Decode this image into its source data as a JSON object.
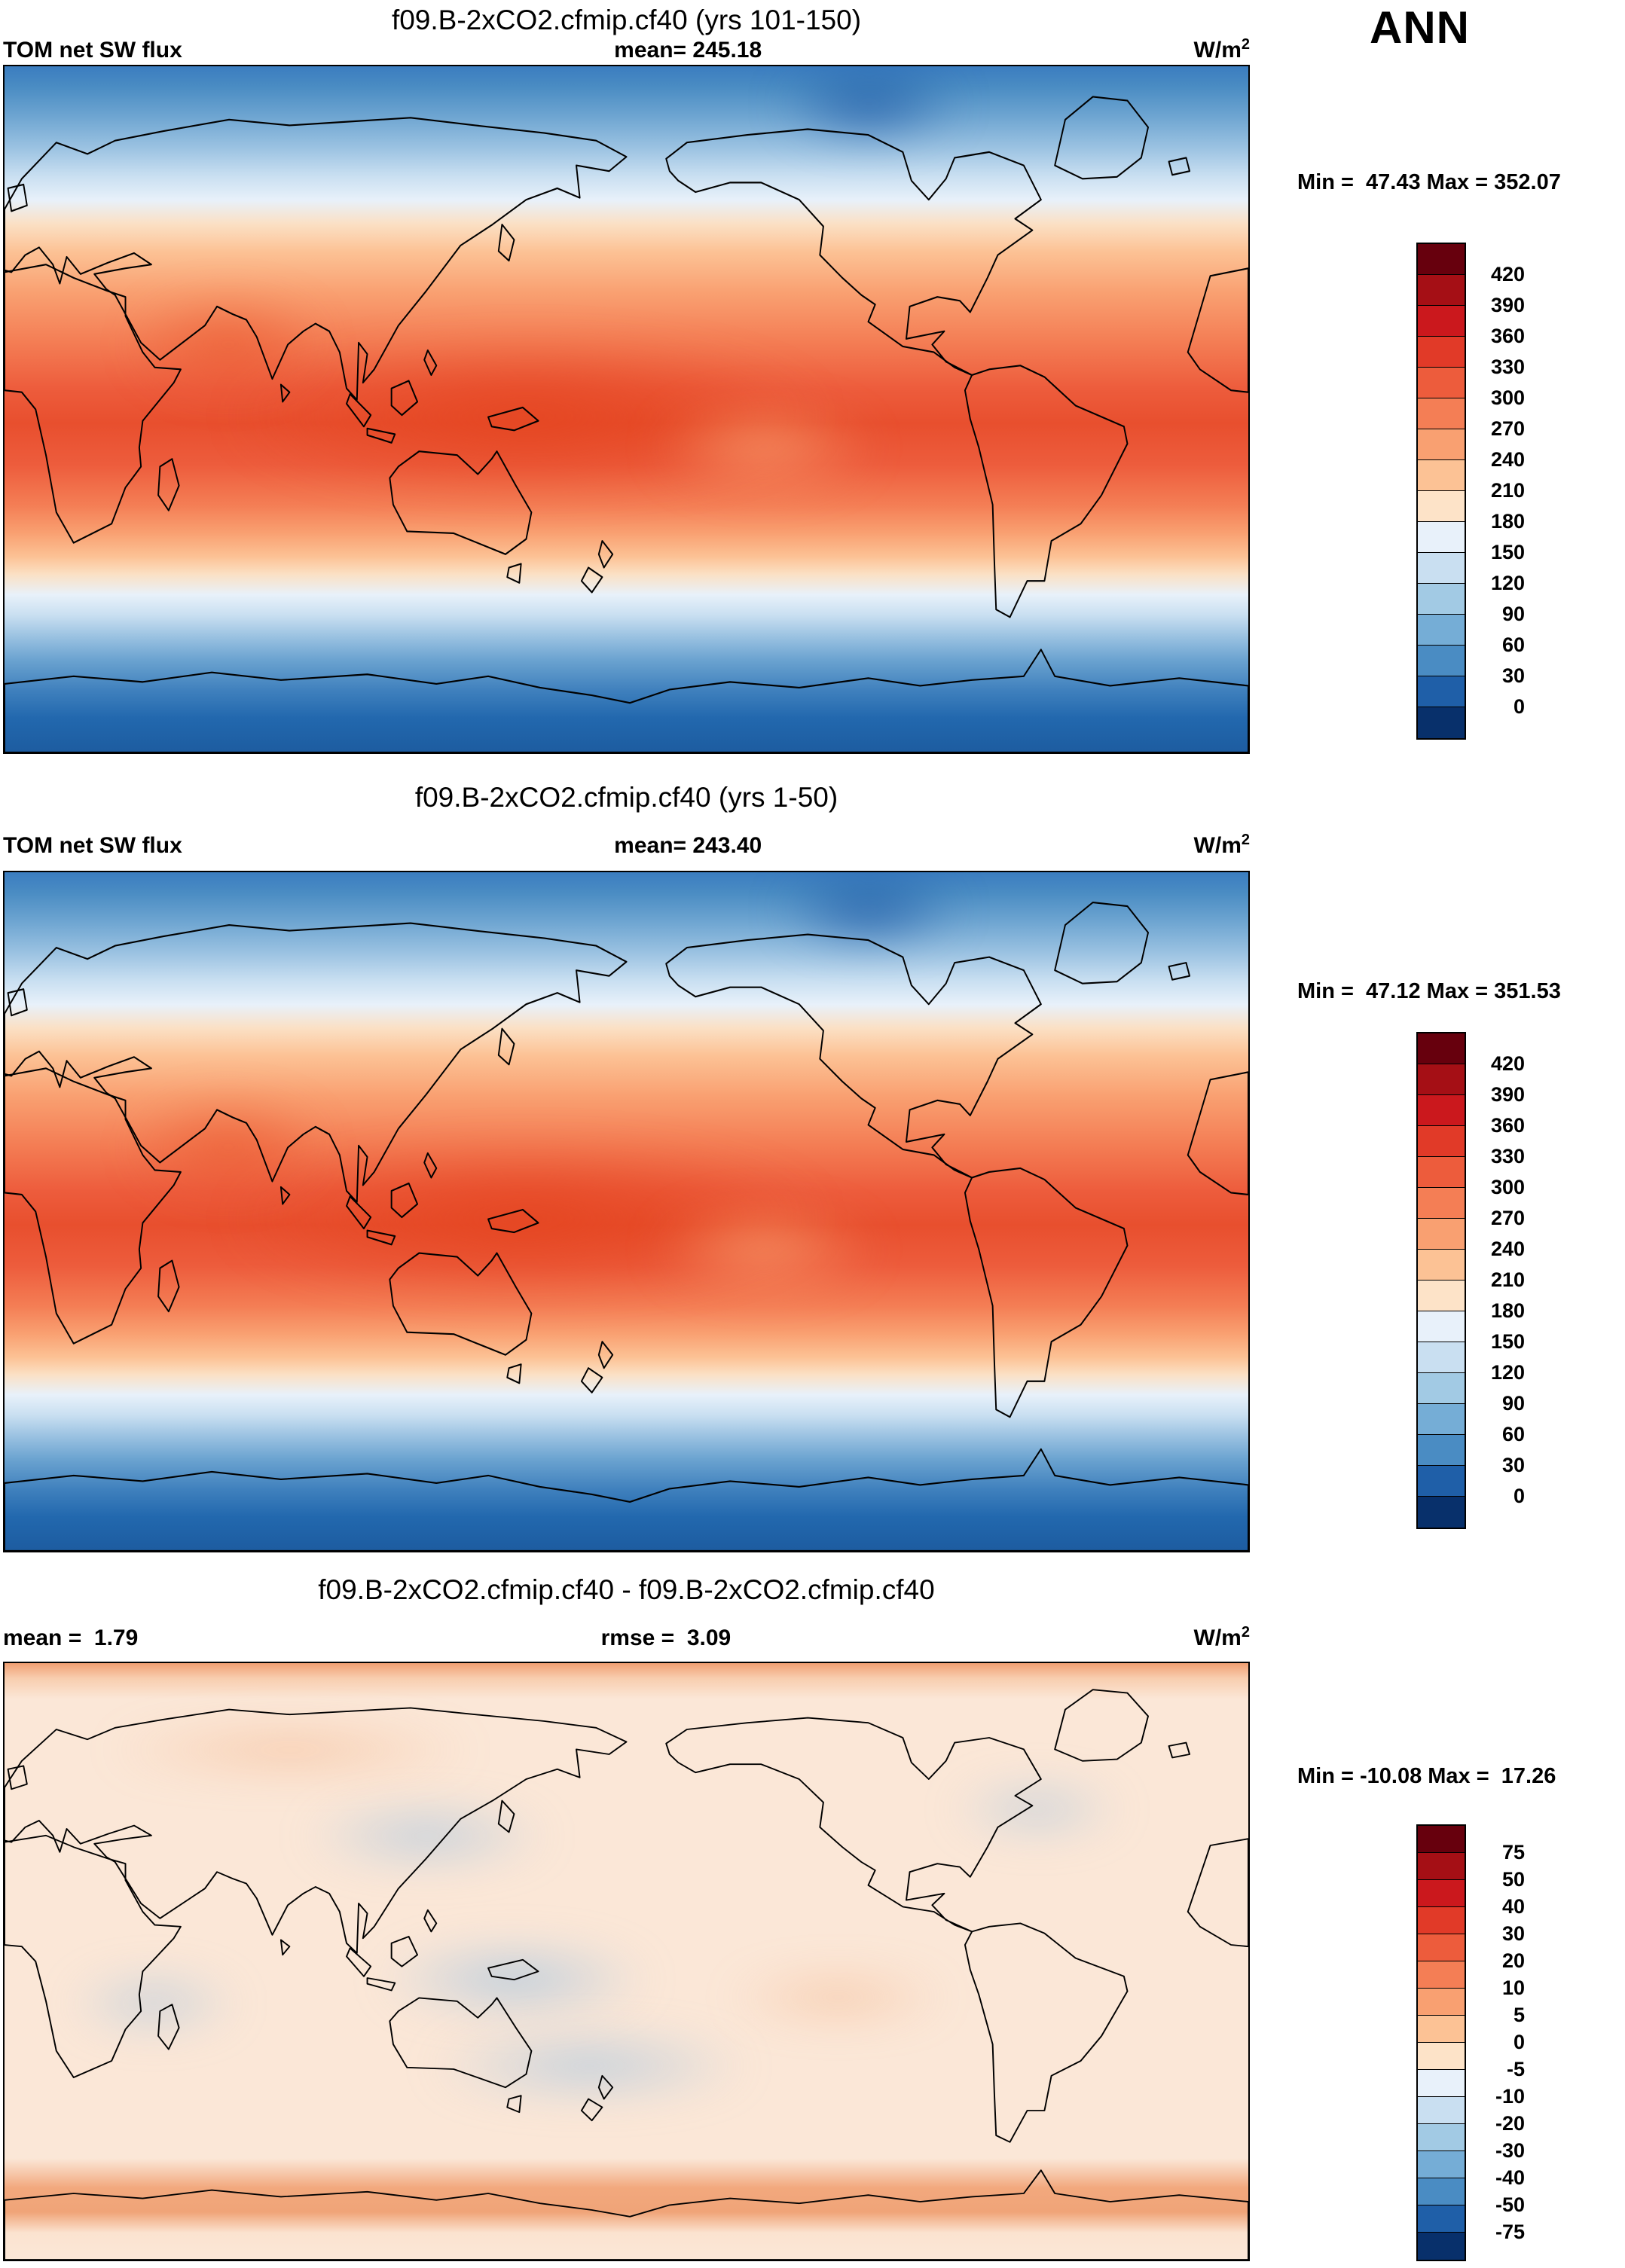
{
  "season_label": "ANN",
  "panels": [
    {
      "title": "f09.B-2xCO2.cfmip.cf40 (yrs 101-150)",
      "field_label": "TOM net SW flux",
      "stat_center": "mean= 245.18",
      "units_base": "W/m",
      "units_exp": "2",
      "minmax": "Min =  47.43 Max = 352.07",
      "colorbar": {
        "labels": [
          "420",
          "390",
          "360",
          "330",
          "300",
          "270",
          "240",
          "210",
          "180",
          "150",
          "120",
          "90",
          "60",
          "30",
          "0"
        ],
        "colors": [
          "#67000d",
          "#a50f15",
          "#cb181d",
          "#e13a28",
          "#ed5c3c",
          "#f47e55",
          "#f9a071",
          "#fcc295",
          "#fde3c8",
          "#e8f1fa",
          "#c9dff1",
          "#a2cae4",
          "#75add6",
          "#4a8cc3",
          "#1f5fa8",
          "#08306b"
        ]
      }
    },
    {
      "title": "f09.B-2xCO2.cfmip.cf40 (yrs 1-50)",
      "field_label": "TOM net SW flux",
      "stat_center": "mean= 243.40",
      "units_base": "W/m",
      "units_exp": "2",
      "minmax": "Min =  47.12 Max = 351.53",
      "colorbar": {
        "labels": [
          "420",
          "390",
          "360",
          "330",
          "300",
          "270",
          "240",
          "210",
          "180",
          "150",
          "120",
          "90",
          "60",
          "30",
          "0"
        ],
        "colors": [
          "#67000d",
          "#a50f15",
          "#cb181d",
          "#e13a28",
          "#ed5c3c",
          "#f47e55",
          "#f9a071",
          "#fcc295",
          "#fde3c8",
          "#e8f1fa",
          "#c9dff1",
          "#a2cae4",
          "#75add6",
          "#4a8cc3",
          "#1f5fa8",
          "#08306b"
        ]
      }
    },
    {
      "title": "f09.B-2xCO2.cfmip.cf40 - f09.B-2xCO2.cfmip.cf40",
      "field_label": "mean =  1.79",
      "stat_center": "rmse =  3.09",
      "units_base": "W/m",
      "units_exp": "2",
      "minmax": "Min = -10.08 Max =  17.26",
      "colorbar": {
        "labels": [
          "75",
          "50",
          "40",
          "30",
          "20",
          "10",
          "5",
          "0",
          "-5",
          "-10",
          "-20",
          "-30",
          "-40",
          "-50",
          "-75"
        ],
        "colors": [
          "#67000d",
          "#a50f15",
          "#cb181d",
          "#e13a28",
          "#ed5c3c",
          "#f47e55",
          "#f9a071",
          "#fcc295",
          "#fde3c8",
          "#e8f1fa",
          "#c9dff1",
          "#a2cae4",
          "#75add6",
          "#4a8cc3",
          "#1f5fa8",
          "#08306b"
        ]
      }
    }
  ],
  "chart_data": [
    {
      "type": "heatmap",
      "title": "f09.B-2xCO2.cfmip.cf40 (yrs 101-150)",
      "variable": "TOM net SW flux",
      "season": "ANN",
      "units": "W/m2",
      "mean": 245.18,
      "min": 47.43,
      "max": 352.07,
      "contour_levels": [
        0,
        30,
        60,
        90,
        120,
        150,
        180,
        210,
        240,
        270,
        300,
        330,
        360,
        390,
        420
      ],
      "palette": "blue(low)-to-red(high) diverging, 16 classes",
      "layout": "global latitude-longitude map, Greenwich at left edge (0-360E), colorbar at right",
      "spatial_pattern": "zonally banded: ~60-150 W/m2 near both poles increasing to ~300-360 W/m2 in the tropics"
    },
    {
      "type": "heatmap",
      "title": "f09.B-2xCO2.cfmip.cf40 (yrs 1-50)",
      "variable": "TOM net SW flux",
      "season": "ANN",
      "units": "W/m2",
      "mean": 243.4,
      "min": 47.12,
      "max": 351.53,
      "contour_levels": [
        0,
        30,
        60,
        90,
        120,
        150,
        180,
        210,
        240,
        270,
        300,
        330,
        360,
        390,
        420
      ],
      "palette": "blue(low)-to-red(high) diverging, 16 classes",
      "layout": "global latitude-longitude map, Greenwich at left edge (0-360E), colorbar at right",
      "spatial_pattern": "zonally banded: ~60-150 W/m2 near both poles increasing to ~300-360 W/m2 in the tropics"
    },
    {
      "type": "heatmap",
      "title": "f09.B-2xCO2.cfmip.cf40 - f09.B-2xCO2.cfmip.cf40",
      "variable": "TOM net SW flux difference",
      "units": "W/m2",
      "mean": 1.79,
      "rmse": 3.09,
      "min": -10.08,
      "max": 17.26,
      "contour_levels": [
        -75,
        -50,
        -40,
        -30,
        -20,
        -10,
        -5,
        0,
        5,
        10,
        20,
        30,
        40,
        50,
        75
      ],
      "palette": "blue(negative)-to-red(positive) diverging, 16 classes",
      "layout": "global latitude-longitude map, Greenwich at left edge (0-360E), colorbar at right",
      "spatial_pattern": "mostly 0 to +5 W/m2; scattered -5 to -10 patches over Pacific/Atlantic/Indian oceans; +5 to +20 bands near Arctic coast and ~60S"
    }
  ]
}
